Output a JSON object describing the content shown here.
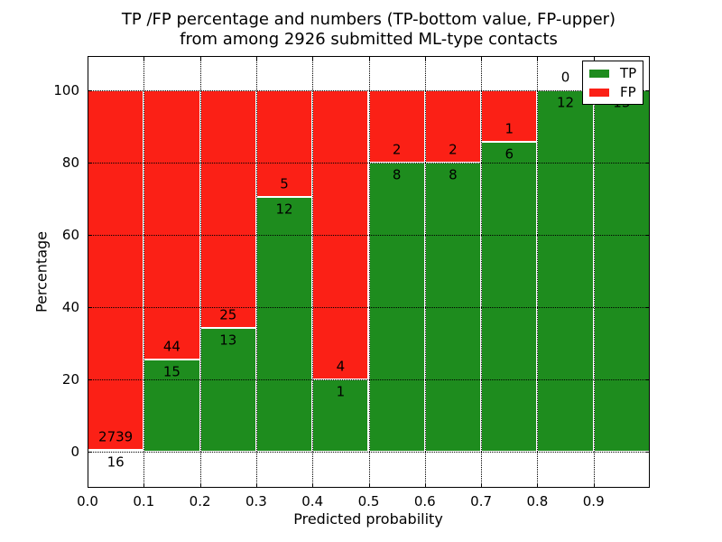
{
  "chart_data": {
    "type": "bar",
    "stacked": true,
    "values_are": "percent_of_bin_total",
    "title_line1": "TP /FP percentage and numbers (TP-bottom value, FP-upper)",
    "title_line2": "from among 2926 submitted ML-type contacts",
    "total_contacts": 2926,
    "xlabel": "Predicted probability",
    "ylabel": "Percentage",
    "x_tick_labels": [
      "0.0",
      "0.1",
      "0.2",
      "0.3",
      "0.4",
      "0.5",
      "0.6",
      "0.7",
      "0.8",
      "0.9"
    ],
    "y_tick_labels": [
      "0",
      "20",
      "40",
      "60",
      "80",
      "100"
    ],
    "y_tick_values": [
      0,
      20,
      40,
      60,
      80,
      100
    ],
    "xlim": [
      0.0,
      1.0
    ],
    "ylim": [
      -10,
      109.5
    ],
    "grid": "dotted-black",
    "bar_edge_color": "#ffffff",
    "categories": [
      "0.0-0.1",
      "0.1-0.2",
      "0.2-0.3",
      "0.3-0.4",
      "0.4-0.5",
      "0.5-0.6",
      "0.6-0.7",
      "0.7-0.8",
      "0.8-0.9",
      "0.9-1.0"
    ],
    "series": [
      {
        "name": "TP",
        "color": "#1e8c1e",
        "counts": [
          16,
          15,
          13,
          12,
          1,
          8,
          8,
          6,
          12,
          13
        ]
      },
      {
        "name": "FP",
        "color": "#fb2016",
        "counts": [
          2739,
          44,
          25,
          5,
          4,
          2,
          2,
          1,
          0,
          0
        ]
      }
    ],
    "tp_percent": [
      0.58,
      25.42,
      34.21,
      70.59,
      20.0,
      80.0,
      80.0,
      85.71,
      100.0,
      100.0
    ],
    "legend": {
      "position": "upper right",
      "entries": [
        {
          "label": "TP",
          "color": "#1e8c1e"
        },
        {
          "label": "FP",
          "color": "#fb2016"
        }
      ]
    }
  }
}
